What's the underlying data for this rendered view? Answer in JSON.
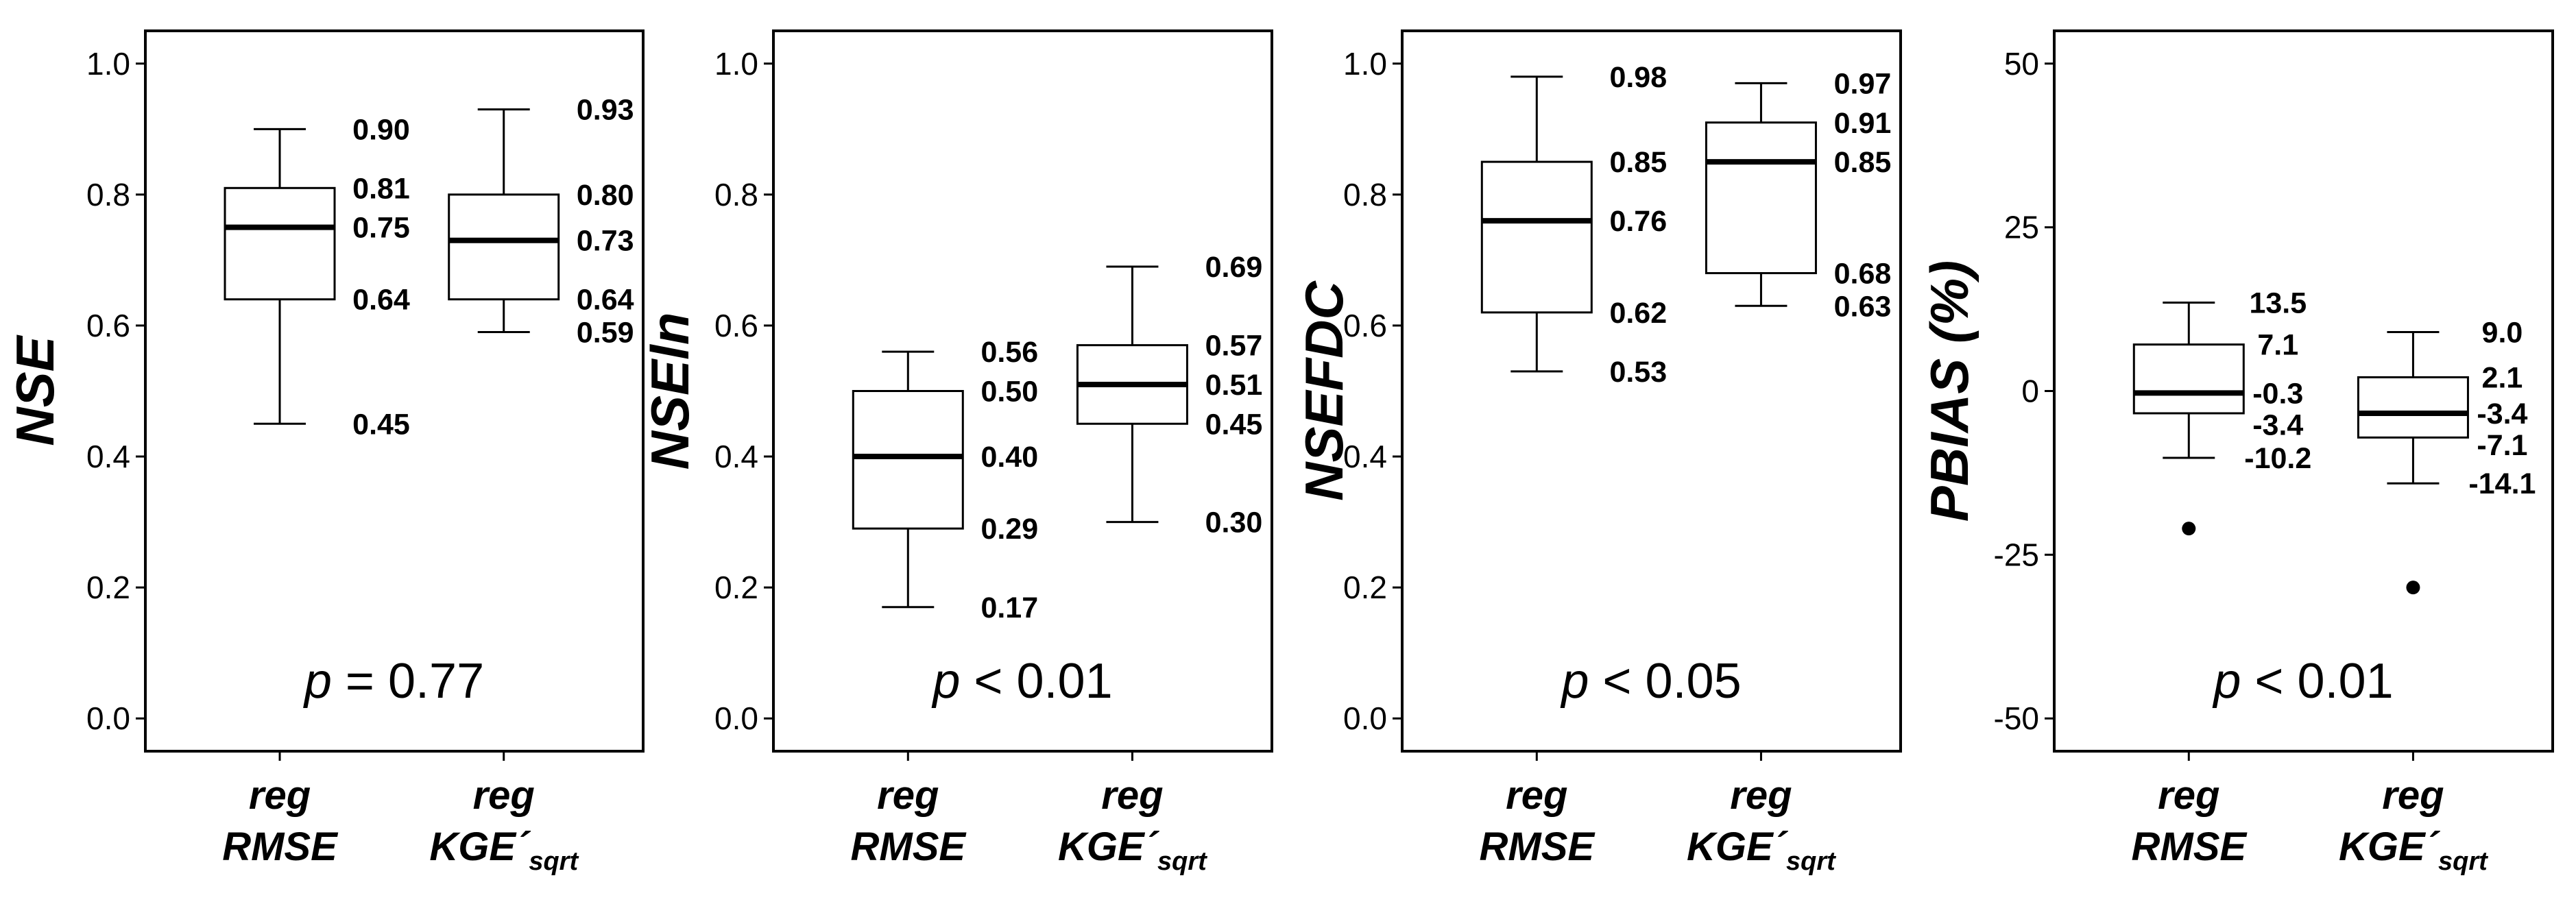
{
  "chart_data": [
    {
      "type": "box",
      "ylabel": "NSE",
      "ylim": [
        -0.05,
        1.05
      ],
      "yticks": [
        0.0,
        0.2,
        0.4,
        0.6,
        0.8,
        1.0
      ],
      "ytick_labels": [
        "0.0",
        "0.2",
        "0.4",
        "0.6",
        "0.8",
        "1.0"
      ],
      "p_symbol": "p",
      "p_rest": " = 0.77",
      "groups": [
        {
          "label_main": "reg",
          "label_second": "RMSE",
          "label_sub": "",
          "whisker_low": 0.45,
          "q1": 0.64,
          "median": 0.75,
          "q3": 0.81,
          "whisker_high": 0.9,
          "outliers": [],
          "annotations": [
            {
              "text": "0.90",
              "y": 0.9
            },
            {
              "text": "0.81",
              "y": 0.81
            },
            {
              "text": "0.75",
              "y": 0.75
            },
            {
              "text": "0.64",
              "y": 0.64
            },
            {
              "text": "0.45",
              "y": 0.45
            }
          ]
        },
        {
          "label_main": "reg",
          "label_second": "KGE´",
          "label_sub": "sqrt",
          "whisker_low": 0.59,
          "q1": 0.64,
          "median": 0.73,
          "q3": 0.8,
          "whisker_high": 0.93,
          "outliers": [],
          "annotations": [
            {
              "text": "0.93",
              "y": 0.93
            },
            {
              "text": "0.80",
              "y": 0.8
            },
            {
              "text": "0.73",
              "y": 0.73
            },
            {
              "text": "0.64",
              "y": 0.64
            },
            {
              "text": "0.59",
              "y": 0.59
            }
          ]
        }
      ]
    },
    {
      "type": "box",
      "ylabel": "NSEln",
      "ylim": [
        -0.05,
        1.05
      ],
      "yticks": [
        0.0,
        0.2,
        0.4,
        0.6,
        0.8,
        1.0
      ],
      "ytick_labels": [
        "0.0",
        "0.2",
        "0.4",
        "0.6",
        "0.8",
        "1.0"
      ],
      "p_symbol": "p",
      "p_rest": " < 0.01",
      "groups": [
        {
          "label_main": "reg",
          "label_second": "RMSE",
          "label_sub": "",
          "whisker_low": 0.17,
          "q1": 0.29,
          "median": 0.4,
          "q3": 0.5,
          "whisker_high": 0.56,
          "outliers": [],
          "annotations": [
            {
              "text": "0.56",
              "y": 0.56
            },
            {
              "text": "0.50",
              "y": 0.5
            },
            {
              "text": "0.40",
              "y": 0.4
            },
            {
              "text": "0.29",
              "y": 0.29
            },
            {
              "text": "0.17",
              "y": 0.17
            }
          ]
        },
        {
          "label_main": "reg",
          "label_second": "KGE´",
          "label_sub": "sqrt",
          "whisker_low": 0.3,
          "q1": 0.45,
          "median": 0.51,
          "q3": 0.57,
          "whisker_high": 0.69,
          "outliers": [],
          "annotations": [
            {
              "text": "0.69",
              "y": 0.69
            },
            {
              "text": "0.57",
              "y": 0.57
            },
            {
              "text": "0.51",
              "y": 0.51
            },
            {
              "text": "0.45",
              "y": 0.45
            },
            {
              "text": "0.30",
              "y": 0.3
            }
          ]
        }
      ]
    },
    {
      "type": "box",
      "ylabel": "NSEFDC",
      "ylim": [
        -0.05,
        1.05
      ],
      "yticks": [
        0.0,
        0.2,
        0.4,
        0.6,
        0.8,
        1.0
      ],
      "ytick_labels": [
        "0.0",
        "0.2",
        "0.4",
        "0.6",
        "0.8",
        "1.0"
      ],
      "p_symbol": "p",
      "p_rest": " < 0.05",
      "groups": [
        {
          "label_main": "reg",
          "label_second": "RMSE",
          "label_sub": "",
          "whisker_low": 0.53,
          "q1": 0.62,
          "median": 0.76,
          "q3": 0.85,
          "whisker_high": 0.98,
          "outliers": [],
          "annotations": [
            {
              "text": "0.98",
              "y": 0.98
            },
            {
              "text": "0.85",
              "y": 0.85
            },
            {
              "text": "0.76",
              "y": 0.76
            },
            {
              "text": "0.62",
              "y": 0.62
            },
            {
              "text": "0.53",
              "y": 0.53
            }
          ]
        },
        {
          "label_main": "reg",
          "label_second": "KGE´",
          "label_sub": "sqrt",
          "whisker_low": 0.63,
          "q1": 0.68,
          "median": 0.85,
          "q3": 0.91,
          "whisker_high": 0.97,
          "outliers": [],
          "annotations": [
            {
              "text": "0.97",
              "y": 0.97
            },
            {
              "text": "0.91",
              "y": 0.91
            },
            {
              "text": "0.85",
              "y": 0.85
            },
            {
              "text": "0.68",
              "y": 0.68
            },
            {
              "text": "0.63",
              "y": 0.63
            }
          ]
        }
      ]
    },
    {
      "type": "box",
      "ylabel": "PBIAS (%)",
      "ylim": [
        -55,
        55
      ],
      "yticks": [
        -50,
        -25,
        0,
        25,
        50
      ],
      "ytick_labels": [
        "-50",
        "-25",
        "0",
        "25",
        "50"
      ],
      "p_symbol": "p",
      "p_rest": " < 0.01",
      "groups": [
        {
          "label_main": "reg",
          "label_second": "RMSE",
          "label_sub": "",
          "whisker_low": -10.2,
          "q1": -3.4,
          "median": -0.3,
          "q3": 7.1,
          "whisker_high": 13.5,
          "outliers": [
            -21
          ],
          "annotations": [
            {
              "text": "13.5",
              "y": 13.5
            },
            {
              "text": "7.1",
              "y": 7.1
            },
            {
              "text": "-0.3",
              "y": -0.3
            },
            {
              "text": "-3.4",
              "y": -3.4
            },
            {
              "text": "-10.2",
              "y": -10.2
            }
          ]
        },
        {
          "label_main": "reg",
          "label_second": "KGE´",
          "label_sub": "sqrt",
          "whisker_low": -14.1,
          "q1": -7.1,
          "median": -3.4,
          "q3": 2.1,
          "whisker_high": 9.0,
          "outliers": [
            -30
          ],
          "annotations": [
            {
              "text": "9.0",
              "y": 9.0
            },
            {
              "text": "2.1",
              "y": 2.1
            },
            {
              "text": "-3.4",
              "y": -3.4
            },
            {
              "text": "-7.1",
              "y": -7.1
            },
            {
              "text": "-14.1",
              "y": -14.1
            }
          ]
        }
      ]
    }
  ]
}
